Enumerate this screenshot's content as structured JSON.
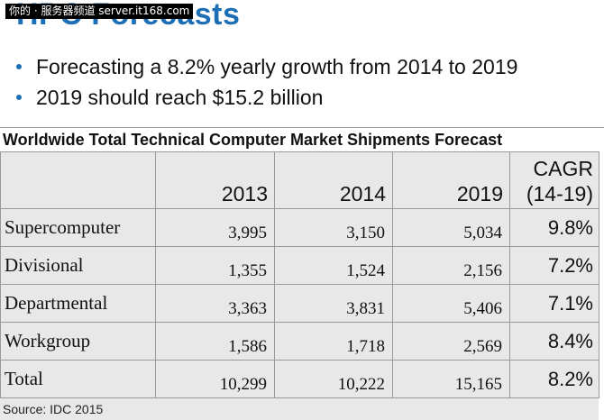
{
  "watermark": "你的 · 服务器频道 server.it168.com",
  "slide_title": "HPC Forecasts",
  "bullets": [
    "Forecasting a 8.2% yearly growth from 2014 to 2019",
    "2019 should reach $15.2 billion"
  ],
  "table": {
    "title": "Worldwide Total Technical Computer Market Shipments Forecast",
    "headers": [
      "",
      "2013",
      "2014",
      "2019"
    ],
    "cagr_header": [
      "CAGR",
      "(14-19)"
    ],
    "rows": [
      {
        "label": "Supercomputer",
        "y2013": "3,995",
        "y2014": "3,150",
        "y2019": "5,034",
        "cagr": "9.8%"
      },
      {
        "label": "Divisional",
        "y2013": "1,355",
        "y2014": "1,524",
        "y2019": "2,156",
        "cagr": "7.2%"
      },
      {
        "label": "Departmental",
        "y2013": "3,363",
        "y2014": "3,831",
        "y2019": "5,406",
        "cagr": "7.1%"
      },
      {
        "label": "Workgroup",
        "y2013": "1,586",
        "y2014": "1,718",
        "y2019": "2,569",
        "cagr": "8.4%"
      },
      {
        "label": "Total",
        "y2013": "10,299",
        "y2014": "10,222",
        "y2019": "15,165",
        "cagr": "8.2%"
      }
    ],
    "source": "Source: IDC 2015"
  },
  "colors": {
    "title_blue": "#1d6fb5",
    "table_bg": "#e8e8e8",
    "grid": "#9a9a9a"
  }
}
